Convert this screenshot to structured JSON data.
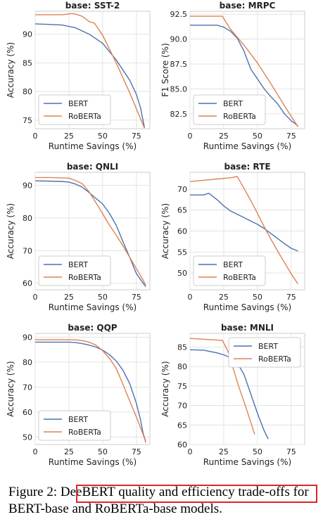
{
  "chart_data": [
    {
      "type": "line",
      "title": "base: SST-2",
      "xlabel": "Runtime Savings (%)",
      "ylabel": "Accuracy (%)",
      "xlim": [
        0,
        85
      ],
      "ylim": [
        73.5,
        94
      ],
      "xticks": [
        0,
        25,
        50,
        75
      ],
      "yticks": [
        75,
        80,
        85,
        90
      ],
      "legend": "lower-left",
      "grid": true,
      "series": [
        {
          "name": "BERT",
          "color": "#4c72b0",
          "x": [
            0,
            10,
            20,
            30,
            40,
            50,
            60,
            70,
            75,
            78,
            81
          ],
          "y": [
            91.8,
            91.7,
            91.6,
            91.1,
            90.0,
            88.4,
            85.5,
            82.0,
            79.5,
            77.2,
            73.7
          ]
        },
        {
          "name": "RoBERTa",
          "color": "#dd8452",
          "x": [
            0,
            10,
            20,
            27,
            30,
            35,
            40,
            44,
            50,
            60,
            70,
            81
          ],
          "y": [
            93.4,
            93.4,
            93.4,
            93.6,
            93.5,
            93.1,
            92.2,
            91.9,
            89.8,
            85.0,
            79.8,
            73.6
          ]
        }
      ]
    },
    {
      "type": "line",
      "title": "base: MRPC",
      "xlabel": "Runtime Savings (%)",
      "ylabel": "F1 Score (%)",
      "xlim": [
        0,
        85
      ],
      "ylim": [
        81,
        92.8
      ],
      "xticks": [
        0,
        25,
        50,
        75
      ],
      "yticks": [
        82.5,
        85.0,
        87.5,
        90.0,
        92.5
      ],
      "ytick_labels": [
        "82.5",
        "85.0",
        "87.5",
        "90.0",
        "92.5"
      ],
      "legend": "lower-left",
      "grid": true,
      "series": [
        {
          "name": "BERT",
          "color": "#4c72b0",
          "x": [
            0,
            10,
            20,
            25,
            30,
            35,
            40,
            45,
            50,
            55,
            60,
            65,
            70,
            75,
            80
          ],
          "y": [
            91.4,
            91.4,
            91.4,
            91.2,
            90.8,
            90.1,
            88.8,
            87.0,
            86.0,
            85.0,
            84.2,
            83.5,
            82.5,
            81.8,
            81.3
          ]
        },
        {
          "name": "RoBERTa",
          "color": "#dd8452",
          "x": [
            0,
            10,
            20,
            24,
            30,
            35,
            40,
            50,
            60,
            70,
            80
          ],
          "y": [
            92.3,
            92.3,
            92.3,
            92.3,
            91.0,
            90.2,
            89.4,
            87.6,
            85.5,
            83.3,
            81.2
          ]
        }
      ]
    },
    {
      "type": "line",
      "title": "base: QNLI",
      "xlabel": "Runtime Savings (%)",
      "ylabel": "Accuracy (%)",
      "xlim": [
        0,
        85
      ],
      "ylim": [
        58,
        94
      ],
      "xticks": [
        0,
        25,
        50,
        75
      ],
      "yticks": [
        60,
        70,
        80,
        90
      ],
      "legend": "lower-left",
      "grid": true,
      "series": [
        {
          "name": "BERT",
          "color": "#4c72b0",
          "x": [
            0,
            10,
            20,
            25,
            30,
            35,
            40,
            45,
            50,
            55,
            60,
            65,
            70,
            75,
            80,
            82
          ],
          "y": [
            91.4,
            91.3,
            91.2,
            91.0,
            90.4,
            89.4,
            87.8,
            86.0,
            84.3,
            81.4,
            77.8,
            72.8,
            68.0,
            63.0,
            60.0,
            59.0
          ]
        },
        {
          "name": "RoBERTa",
          "color": "#dd8452",
          "x": [
            0,
            10,
            20,
            25,
            30,
            35,
            40,
            45,
            50,
            55,
            60,
            65,
            70,
            75,
            80,
            82
          ],
          "y": [
            92.4,
            92.4,
            92.3,
            92.2,
            91.5,
            90.5,
            88.0,
            84.7,
            81.3,
            77.8,
            74.8,
            71.5,
            68.0,
            64.5,
            61.0,
            59.2
          ]
        }
      ]
    },
    {
      "type": "line",
      "title": "base: RTE",
      "xlabel": "Runtime Savings (%)",
      "ylabel": "Accuracy (%)",
      "xlim": [
        0,
        85
      ],
      "ylim": [
        46,
        74
      ],
      "xticks": [
        0,
        25,
        50,
        75
      ],
      "yticks": [
        50,
        55,
        60,
        65,
        70
      ],
      "legend": "lower-left",
      "grid": true,
      "series": [
        {
          "name": "BERT",
          "color": "#4c72b0",
          "x": [
            0,
            5,
            10,
            14,
            20,
            25,
            30,
            35,
            40,
            45,
            50,
            55,
            60,
            65,
            70,
            75,
            80
          ],
          "y": [
            68.6,
            68.6,
            68.6,
            69.0,
            67.5,
            66.0,
            64.8,
            64.0,
            63.2,
            62.4,
            61.6,
            60.6,
            59.4,
            58.2,
            57.0,
            55.9,
            55.2
          ]
        },
        {
          "name": "RoBERTa",
          "color": "#dd8452",
          "x": [
            0,
            10,
            20,
            30,
            35,
            40,
            45,
            50,
            55,
            60,
            65,
            70,
            75,
            80
          ],
          "y": [
            71.8,
            72.1,
            72.4,
            72.7,
            73.0,
            70.2,
            67.3,
            64.2,
            61.0,
            58.0,
            55.2,
            52.5,
            49.8,
            47.4
          ]
        }
      ]
    },
    {
      "type": "line",
      "title": "base: QQP",
      "xlabel": "Runtime Savings (%)",
      "ylabel": "Accuracy (%)",
      "xlim": [
        0,
        85
      ],
      "ylim": [
        47,
        91.5
      ],
      "xticks": [
        0,
        25,
        50,
        75
      ],
      "yticks": [
        50,
        60,
        70,
        80,
        90
      ],
      "legend": "lower-left",
      "grid": true,
      "series": [
        {
          "name": "BERT",
          "color": "#4c72b0",
          "x": [
            0,
            10,
            20,
            25,
            30,
            35,
            40,
            45,
            50,
            55,
            60,
            65,
            70,
            75,
            78,
            80,
            82
          ],
          "y": [
            88.0,
            88.0,
            88.0,
            88.0,
            87.8,
            87.4,
            86.8,
            86.0,
            84.8,
            83.0,
            80.5,
            76.8,
            71.5,
            63.5,
            57.0,
            51.5,
            48.0
          ]
        },
        {
          "name": "RoBERTa",
          "color": "#dd8452",
          "x": [
            0,
            10,
            20,
            30,
            35,
            40,
            45,
            50,
            55,
            60,
            65,
            70,
            75,
            80,
            82
          ],
          "y": [
            89.0,
            89.0,
            89.0,
            88.9,
            88.6,
            88.0,
            86.8,
            84.6,
            81.5,
            77.5,
            71.2,
            64.5,
            58.0,
            51.0,
            47.8
          ]
        }
      ]
    },
    {
      "type": "line",
      "title": "base: MNLI",
      "xlabel": "Runtime Savings (%)",
      "ylabel": "Accuracy (%)",
      "xlim": [
        0,
        85
      ],
      "ylim": [
        60,
        88.5
      ],
      "xticks": [
        0,
        25,
        50,
        75
      ],
      "yticks": [
        60,
        65,
        70,
        75,
        80,
        85
      ],
      "legend": "upper-right",
      "grid": true,
      "series": [
        {
          "name": "BERT",
          "color": "#4c72b0",
          "x": [
            0,
            10,
            20,
            25,
            30,
            35,
            40,
            45,
            50,
            52,
            55,
            58
          ],
          "y": [
            84.3,
            84.2,
            83.5,
            83.0,
            82.3,
            80.9,
            78.0,
            73.0,
            68.0,
            66.2,
            63.5,
            61.4
          ]
        },
        {
          "name": "RoBERTa",
          "color": "#dd8452",
          "x": [
            0,
            10,
            20,
            24,
            28,
            32,
            36,
            40,
            44,
            48
          ],
          "y": [
            87.2,
            87.0,
            86.8,
            86.7,
            84.0,
            79.5,
            75.0,
            71.0,
            66.8,
            62.6
          ]
        }
      ]
    }
  ],
  "caption": {
    "label": "Figure 2:",
    "text": "DeeBERT quality and efficiency trade-offs for BERT-base and RoBERTa-base models."
  }
}
